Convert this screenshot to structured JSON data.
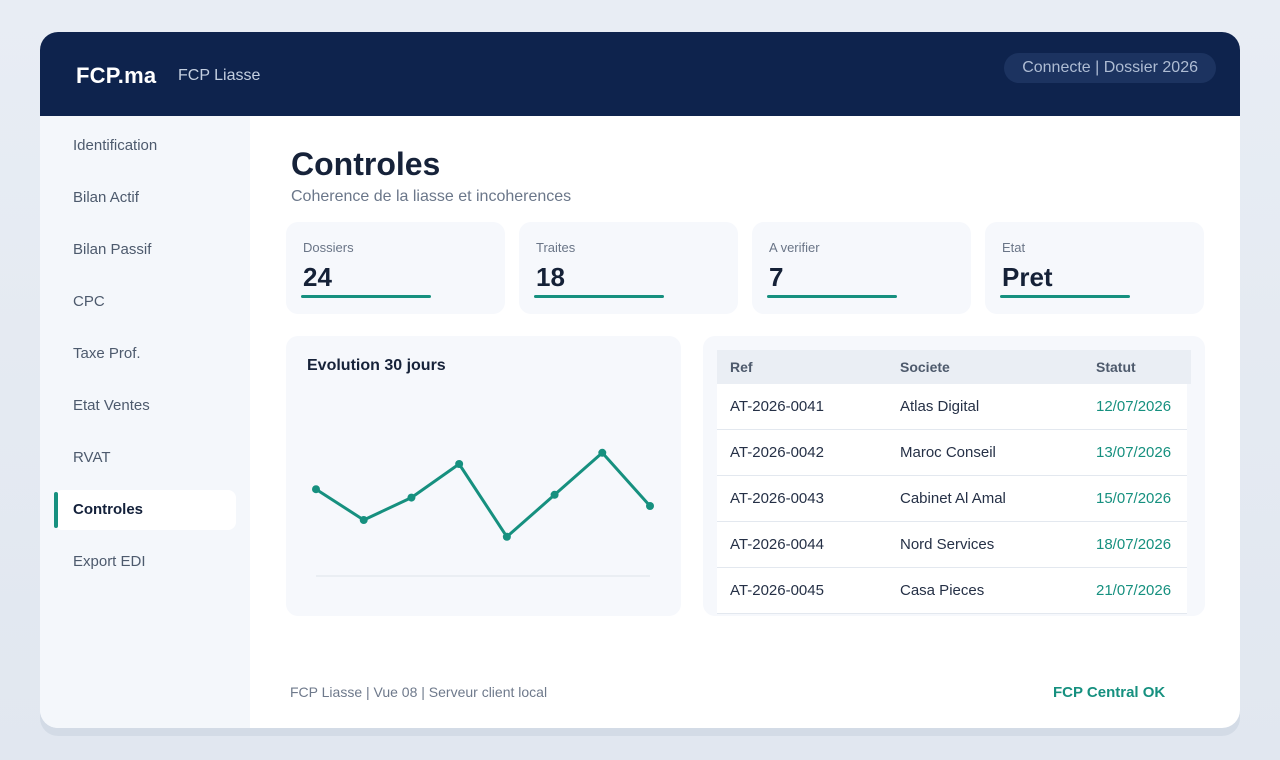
{
  "header": {
    "brand": "FCP.ma",
    "app_name": "FCP Liasse",
    "status": "Connecte | Dossier 2026"
  },
  "sidebar": {
    "items": [
      {
        "label": "Identification",
        "active": false
      },
      {
        "label": "Bilan Actif",
        "active": false
      },
      {
        "label": "Bilan Passif",
        "active": false
      },
      {
        "label": "CPC",
        "active": false
      },
      {
        "label": "Taxe Prof.",
        "active": false
      },
      {
        "label": "Etat Ventes",
        "active": false
      },
      {
        "label": "RVAT",
        "active": false
      },
      {
        "label": "Controles",
        "active": true
      },
      {
        "label": "Export EDI",
        "active": false
      }
    ]
  },
  "main": {
    "title": "Controles",
    "subtitle": "Coherence de la liasse et incoherences"
  },
  "kpis": [
    {
      "label": "Dossiers",
      "value": "24"
    },
    {
      "label": "Traites",
      "value": "18"
    },
    {
      "label": "A verifier",
      "value": "7"
    },
    {
      "label": "Etat",
      "value": "Pret"
    }
  ],
  "chart": {
    "title": "Evolution 30 jours"
  },
  "chart_data": {
    "type": "line",
    "title": "Evolution 30 jours",
    "x": [
      1,
      2,
      3,
      4,
      5,
      6,
      7,
      8
    ],
    "series": [
      {
        "values": [
          62,
          40,
          56,
          80,
          28,
          58,
          88,
          50
        ]
      }
    ],
    "ylim": [
      0,
      100
    ],
    "grid": false,
    "legend": "none",
    "color": "#16907f"
  },
  "table": {
    "headers": [
      "Ref",
      "Societe",
      "Statut"
    ],
    "rows": [
      {
        "ref": "AT-2026-0041",
        "societe": "Atlas Digital",
        "statut": "12/07/2026"
      },
      {
        "ref": "AT-2026-0042",
        "societe": "Maroc Conseil",
        "statut": "13/07/2026"
      },
      {
        "ref": "AT-2026-0043",
        "societe": "Cabinet Al Amal",
        "statut": "15/07/2026"
      },
      {
        "ref": "AT-2026-0044",
        "societe": "Nord Services",
        "statut": "18/07/2026"
      },
      {
        "ref": "AT-2026-0045",
        "societe": "Casa Pieces",
        "statut": "21/07/2026"
      }
    ]
  },
  "footer": {
    "left": "FCP Liasse | Vue 08 | Serveur client local",
    "right": "FCP Central OK"
  },
  "colors": {
    "header_bg": "#0e234d",
    "accent": "#16907f"
  }
}
